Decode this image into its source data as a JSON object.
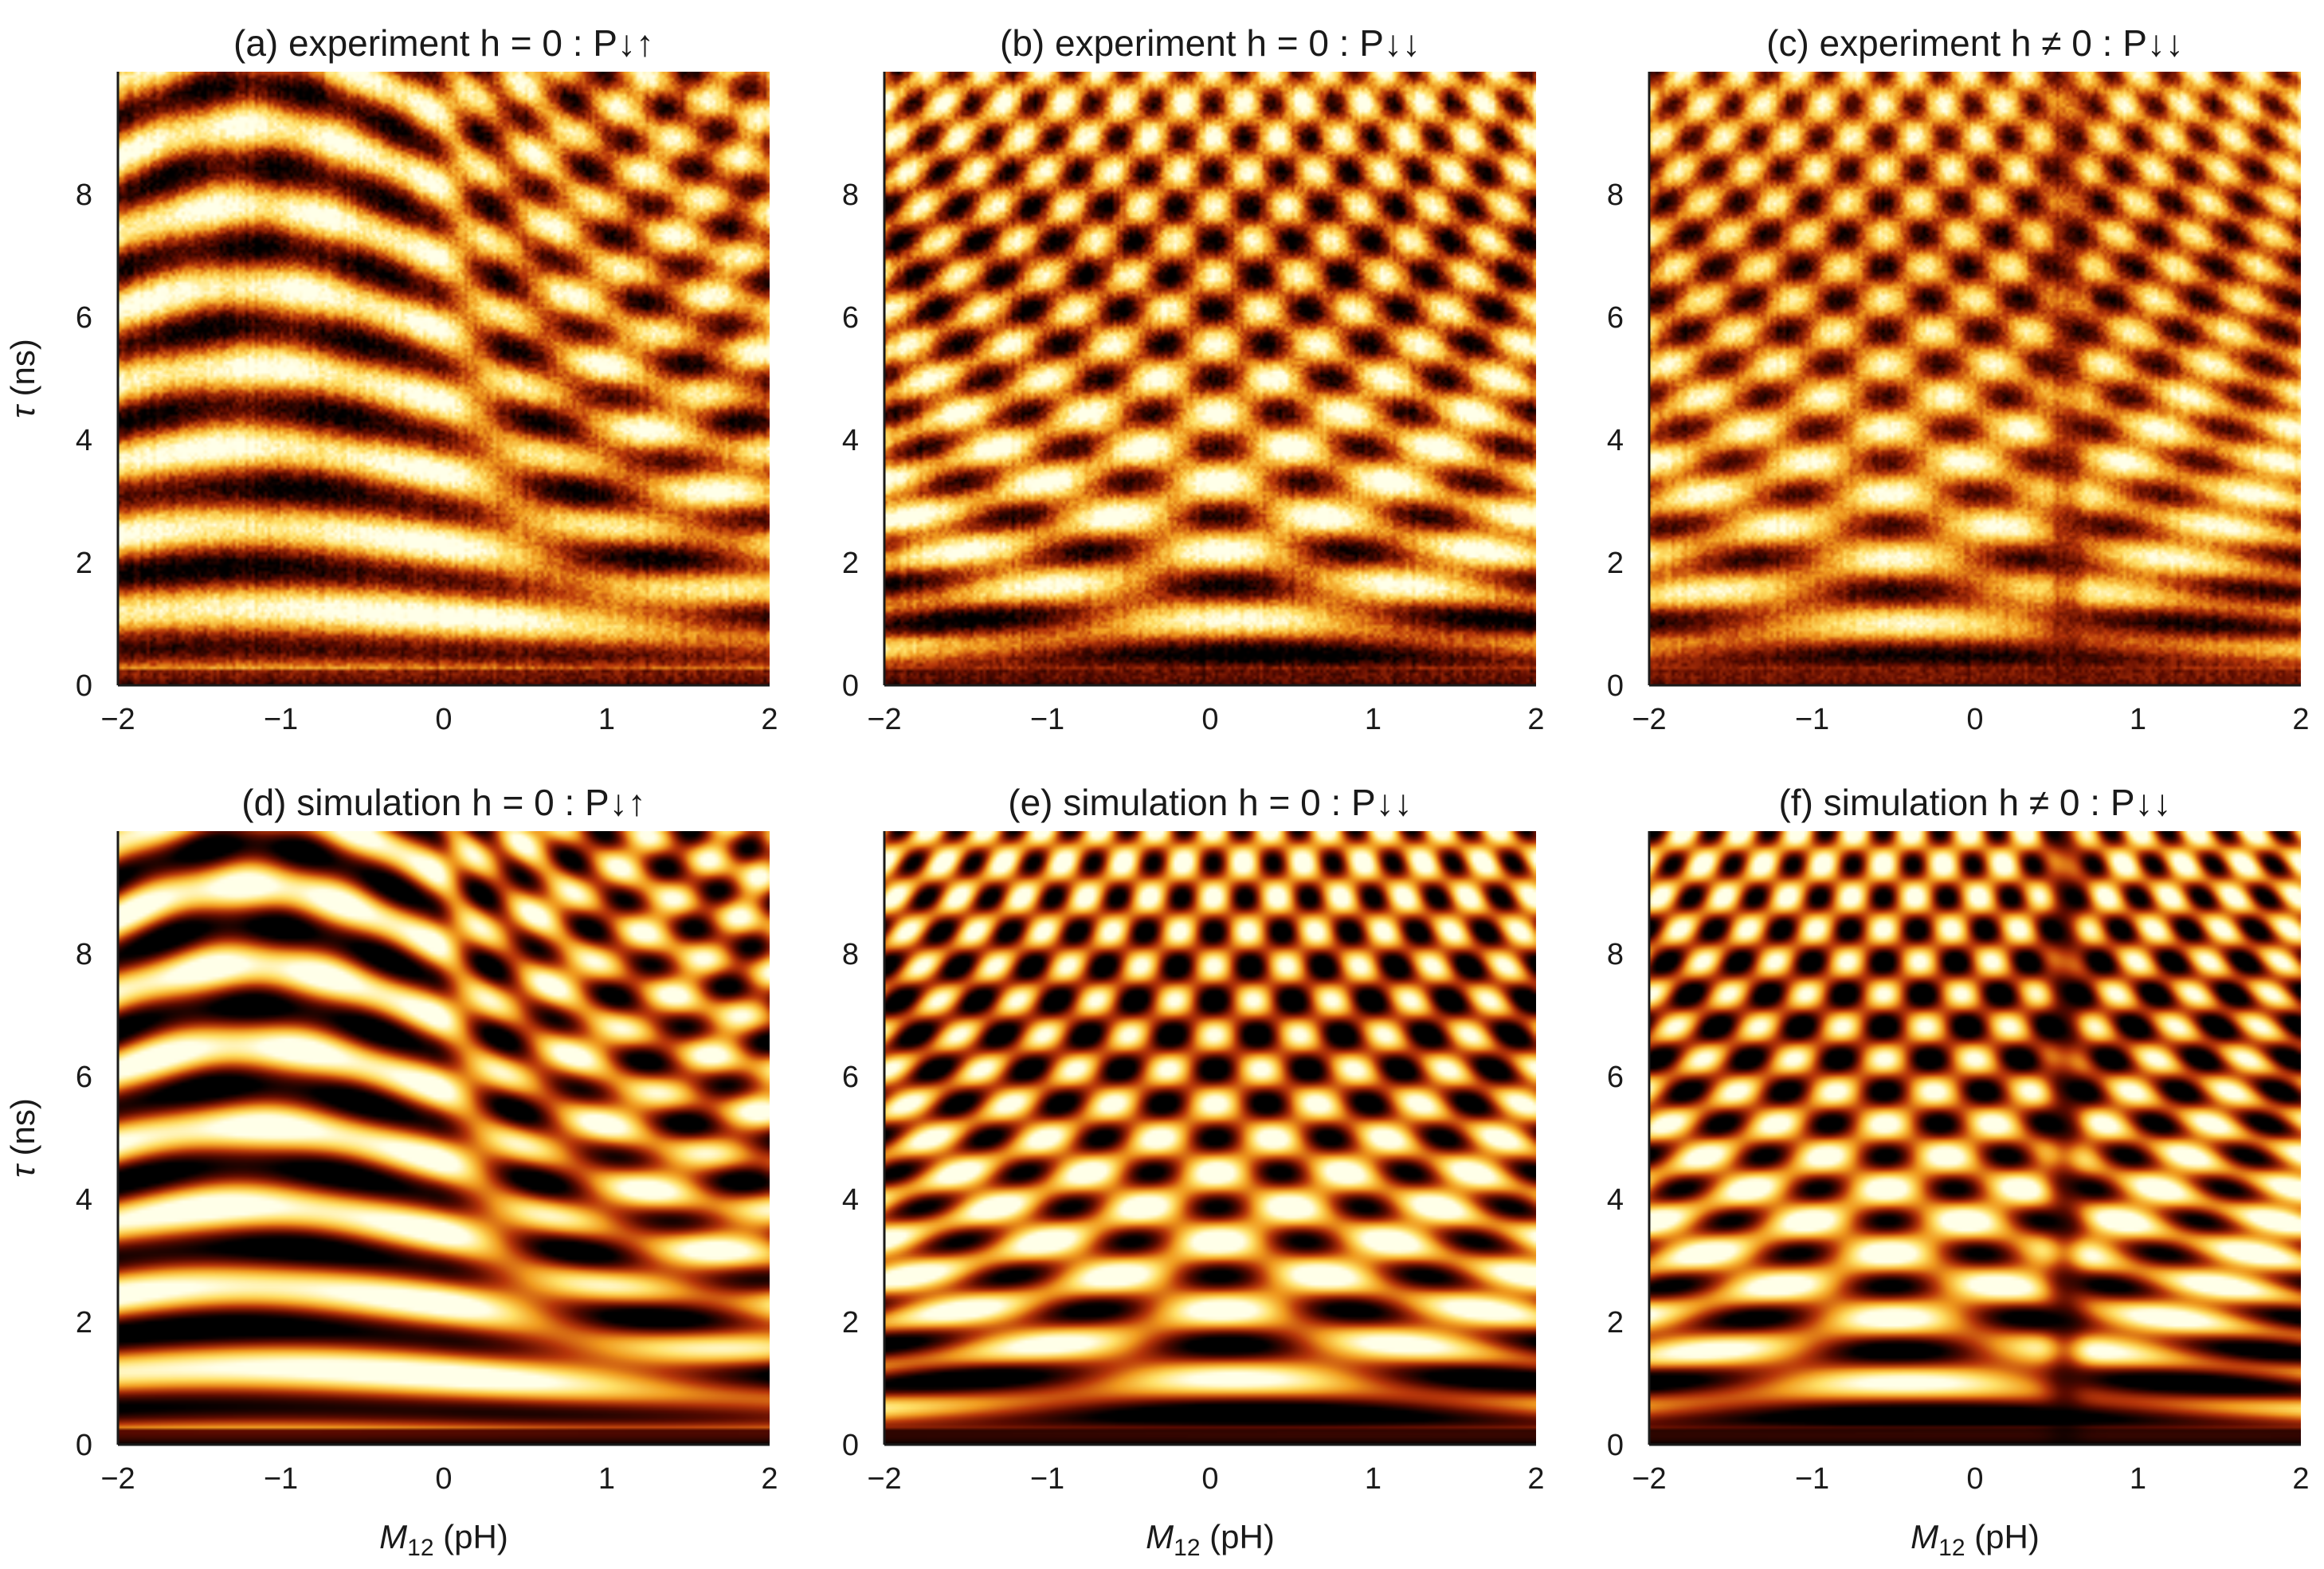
{
  "figure": {
    "panels": [
      {
        "id": "a",
        "title": "(a) experiment h = 0 : P↓↑",
        "kind": "experiment",
        "state": "updown",
        "detuned": false
      },
      {
        "id": "b",
        "title": "(b) experiment h = 0 : P↓↓",
        "kind": "experiment",
        "state": "downdown",
        "detuned": false
      },
      {
        "id": "c",
        "title": "(c) experiment h ≠ 0 : P↓↓",
        "kind": "experiment",
        "state": "downdown",
        "detuned": true
      },
      {
        "id": "d",
        "title": "(d) simulation h = 0 : P↓↑",
        "kind": "simulation",
        "state": "updown",
        "detuned": false
      },
      {
        "id": "e",
        "title": "(e) simulation h = 0 : P↓↓",
        "kind": "simulation",
        "state": "downdown",
        "detuned": false
      },
      {
        "id": "f",
        "title": "(f) simulation h ≠ 0 : P↓↓",
        "kind": "simulation",
        "state": "downdown",
        "detuned": true
      }
    ],
    "colormap": [
      "#000000",
      "#5a0a00",
      "#b8360a",
      "#f09a1e",
      "#ffe066",
      "#ffffe8"
    ]
  },
  "chart_data": [
    {
      "type": "heatmap",
      "title": "(a) experiment h = 0 : P↓↑",
      "xlabel": "",
      "ylabel": "τ (ns)",
      "xlim": [
        -2,
        2
      ],
      "ylim": [
        0,
        10
      ],
      "xticks": [
        "−2",
        "−1",
        "0",
        "1",
        "2"
      ],
      "yticks": [
        "0",
        "2",
        "4",
        "6",
        "8"
      ],
      "xtick_values": [
        -2,
        -1,
        0,
        1,
        2
      ],
      "ytick_values": [
        0,
        2,
        4,
        6,
        8
      ]
    },
    {
      "type": "heatmap",
      "title": "(b) experiment h = 0 : P↓↓",
      "xlabel": "",
      "ylabel": "",
      "xlim": [
        -2,
        2
      ],
      "ylim": [
        0,
        10
      ],
      "xticks": [
        "−2",
        "−1",
        "0",
        "1",
        "2"
      ],
      "yticks": [
        "0",
        "2",
        "4",
        "6",
        "8"
      ],
      "xtick_values": [
        -2,
        -1,
        0,
        1,
        2
      ],
      "ytick_values": [
        0,
        2,
        4,
        6,
        8
      ]
    },
    {
      "type": "heatmap",
      "title": "(c) experiment h ≠ 0 : P↓↓",
      "xlabel": "",
      "ylabel": "",
      "xlim": [
        -2,
        2
      ],
      "ylim": [
        0,
        10
      ],
      "xticks": [
        "−2",
        "−1",
        "0",
        "1",
        "2"
      ],
      "yticks": [
        "0",
        "2",
        "4",
        "6",
        "8"
      ],
      "xtick_values": [
        -2,
        -1,
        0,
        1,
        2
      ],
      "ytick_values": [
        0,
        2,
        4,
        6,
        8
      ]
    },
    {
      "type": "heatmap",
      "title": "(d) simulation h = 0 : P↓↑",
      "xlabel": "M12 (pH)",
      "ylabel": "τ (ns)",
      "xlim": [
        -2,
        2
      ],
      "ylim": [
        0,
        10
      ],
      "xticks": [
        "−2",
        "−1",
        "0",
        "1",
        "2"
      ],
      "yticks": [
        "0",
        "2",
        "4",
        "6",
        "8"
      ],
      "xtick_values": [
        -2,
        -1,
        0,
        1,
        2
      ],
      "ytick_values": [
        0,
        2,
        4,
        6,
        8
      ]
    },
    {
      "type": "heatmap",
      "title": "(e) simulation h = 0 : P↓↓",
      "xlabel": "M12 (pH)",
      "ylabel": "",
      "xlim": [
        -2,
        2
      ],
      "ylim": [
        0,
        10
      ],
      "xticks": [
        "−2",
        "−1",
        "0",
        "1",
        "2"
      ],
      "yticks": [
        "0",
        "2",
        "4",
        "6",
        "8"
      ],
      "xtick_values": [
        -2,
        -1,
        0,
        1,
        2
      ],
      "ytick_values": [
        0,
        2,
        4,
        6,
        8
      ]
    },
    {
      "type": "heatmap",
      "title": "(f) simulation h ≠ 0 : P↓↓",
      "xlabel": "M12 (pH)",
      "ylabel": "",
      "xlim": [
        -2,
        2
      ],
      "ylim": [
        0,
        10
      ],
      "xticks": [
        "−2",
        "−1",
        "0",
        "1",
        "2"
      ],
      "yticks": [
        "0",
        "2",
        "4",
        "6",
        "8"
      ],
      "xtick_values": [
        -2,
        -1,
        0,
        1,
        2
      ],
      "ytick_values": [
        0,
        2,
        4,
        6,
        8
      ]
    }
  ]
}
